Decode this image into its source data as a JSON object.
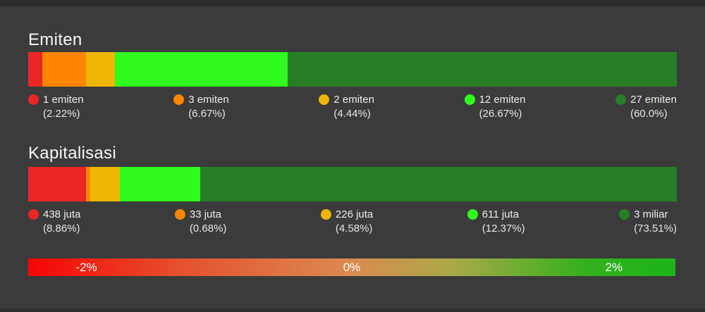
{
  "theme": {
    "background": "#3b3b3b",
    "top_strip": "#2d2d2d",
    "bottom_strip": "#2f2f2f",
    "title_text": "#f7f7f7",
    "legend_text": "#ececec"
  },
  "chart_data": [
    {
      "type": "bar",
      "subtype": "horizontal_stacked_100pct",
      "title": "Emiten",
      "xlim": [
        0,
        100
      ],
      "segments": [
        {
          "label": "1 emiten",
          "count": 1,
          "percent": 2.22,
          "percent_label": "(2.22%)",
          "color": "#ea2627"
        },
        {
          "label": "3 emiten",
          "count": 3,
          "percent": 6.67,
          "percent_label": "(6.67%)",
          "color": "#fd8502"
        },
        {
          "label": "2 emiten",
          "count": 2,
          "percent": 4.44,
          "percent_label": "(4.44%)",
          "color": "#eeb706"
        },
        {
          "label": "12 emiten",
          "count": 12,
          "percent": 26.67,
          "percent_label": "(26.67%)",
          "color": "#30fa1e"
        },
        {
          "label": "27 emiten",
          "count": 27,
          "percent": 60.0,
          "percent_label": "(60.0%)",
          "color": "#277e26"
        }
      ]
    },
    {
      "type": "bar",
      "subtype": "horizontal_stacked_100pct",
      "title": "Kapitalisasi",
      "xlim": [
        0,
        100
      ],
      "segments": [
        {
          "label": "438 juta",
          "percent": 8.86,
          "percent_label": "(8.86%)",
          "color": "#ea2627"
        },
        {
          "label": "33 juta",
          "percent": 0.68,
          "percent_label": "(0.68%)",
          "color": "#fd8502"
        },
        {
          "label": "226 juta",
          "percent": 4.58,
          "percent_label": "(4.58%)",
          "color": "#eeb706"
        },
        {
          "label": "611 juta",
          "percent": 12.37,
          "percent_label": "(12.37%)",
          "color": "#30fa1e"
        },
        {
          "label": "3 miliar",
          "percent": 73.51,
          "percent_label": "(73.51%)",
          "color": "#277e26"
        }
      ]
    },
    {
      "type": "area",
      "subtype": "color_scale_legend",
      "range_percent": [
        -2.5,
        2.5
      ],
      "ticks": [
        {
          "label": "-2%",
          "value": -2,
          "position_pct": 9
        },
        {
          "label": "0%",
          "value": 0,
          "position_pct": 50
        },
        {
          "label": "2%",
          "value": 2,
          "position_pct": 90.5
        }
      ],
      "gradient_stops": [
        {
          "color": "#f70505",
          "pos": 0
        },
        {
          "color": "#e4532d",
          "pos": 24
        },
        {
          "color": "#db8b50",
          "pos": 50
        },
        {
          "color": "#a8aa47",
          "pos": 66
        },
        {
          "color": "#35b01f",
          "pos": 86
        },
        {
          "color": "#1bb41a",
          "pos": 100
        }
      ]
    }
  ]
}
